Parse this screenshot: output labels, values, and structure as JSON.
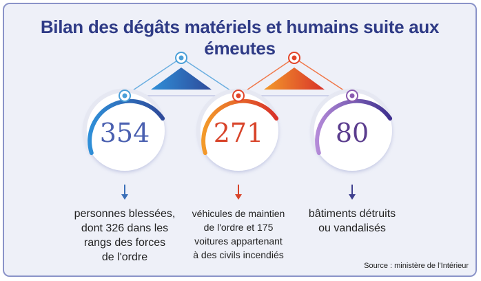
{
  "title": "Bilan des dégâts matériels et humains suite aux émeutes",
  "stats": [
    {
      "value": "354",
      "color": "#4a60b0",
      "lines": [
        "personnes blessées,",
        "dont 326 dans les",
        "rangs des forces",
        "de l'ordre"
      ]
    },
    {
      "value": "271",
      "color": "#d8442a",
      "lines": [
        "véhicules de maintien",
        "de l'ordre et 175",
        "voitures appartenant",
        "à des civils incendiés"
      ]
    },
    {
      "value": "80",
      "color": "#5b3d8e",
      "lines": [
        "bâtiments détruits",
        "ou vandalisés"
      ]
    }
  ],
  "colors": {
    "blue": "#4a9fd8",
    "red": "#e2452a",
    "purple": "#8a5bb0",
    "title": "#2f3b86",
    "frame": "#8a93c8"
  },
  "source": "Source : ministère de l'Intérieur"
}
